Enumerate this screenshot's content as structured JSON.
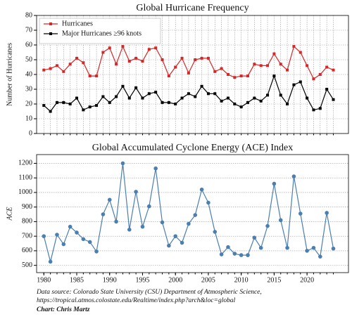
{
  "chart_data": [
    {
      "type": "line",
      "title": "Global Hurricane Frequency",
      "ylabel": "Number of Hurricanes",
      "x": [
        1980,
        1981,
        1982,
        1983,
        1984,
        1985,
        1986,
        1987,
        1988,
        1989,
        1990,
        1991,
        1992,
        1993,
        1994,
        1995,
        1996,
        1997,
        1998,
        1999,
        2000,
        2001,
        2002,
        2003,
        2004,
        2005,
        2006,
        2007,
        2008,
        2009,
        2010,
        2011,
        2012,
        2013,
        2014,
        2015,
        2016,
        2017,
        2018,
        2019,
        2020,
        2021,
        2022,
        2023,
        2024
      ],
      "series": [
        {
          "name": "Hurricanes",
          "color": "#d62728",
          "marker": "square",
          "values": [
            43,
            44,
            46,
            42,
            47,
            51,
            48,
            39,
            39,
            55,
            58,
            47,
            59,
            49,
            51,
            49,
            57,
            58,
            50,
            39,
            45,
            51,
            41,
            50,
            51,
            51,
            42,
            44,
            40,
            38,
            39,
            39,
            47,
            46,
            46,
            54,
            47,
            43,
            59,
            55,
            46,
            37,
            40,
            45,
            43
          ]
        },
        {
          "name": "Major Hurricanes ≥96 knots",
          "color": "#000000",
          "marker": "square",
          "values": [
            19,
            15,
            21,
            21,
            20,
            24,
            16,
            18,
            19,
            25,
            21,
            25,
            32,
            24,
            31,
            24,
            27,
            28,
            21,
            21,
            20,
            24,
            27,
            25,
            32,
            27,
            27,
            22,
            24,
            20,
            18,
            21,
            24,
            22,
            26,
            39,
            26,
            20,
            33,
            35,
            24,
            16,
            17,
            30,
            23
          ]
        }
      ],
      "xlim": [
        1978.9,
        2026.3
      ],
      "ylim": [
        0,
        80
      ],
      "yticks": [
        0,
        10,
        20,
        30,
        40,
        50,
        60,
        70,
        80
      ],
      "grid": true,
      "x_grid": true,
      "legend": "upper-left"
    },
    {
      "type": "line",
      "title": "Global Accumulated Cyclone Energy (ACE) Index",
      "ylabel": "ACE",
      "x": [
        1980,
        1981,
        1982,
        1983,
        1984,
        1985,
        1986,
        1987,
        1988,
        1989,
        1990,
        1991,
        1992,
        1993,
        1994,
        1995,
        1996,
        1997,
        1998,
        1999,
        2000,
        2001,
        2002,
        2003,
        2004,
        2005,
        2006,
        2007,
        2008,
        2009,
        2010,
        2011,
        2012,
        2013,
        2014,
        2015,
        2016,
        2017,
        2018,
        2019,
        2020,
        2021,
        2022,
        2023,
        2024
      ],
      "series": [
        {
          "color": "#4a7fb0",
          "marker": "circle",
          "values": [
            700,
            525,
            710,
            645,
            765,
            725,
            680,
            660,
            595,
            850,
            950,
            800,
            1200,
            745,
            1005,
            765,
            905,
            1165,
            795,
            635,
            700,
            655,
            785,
            845,
            1020,
            930,
            730,
            575,
            625,
            580,
            570,
            570,
            690,
            620,
            770,
            1060,
            810,
            620,
            1110,
            855,
            600,
            620,
            560,
            860,
            615
          ]
        }
      ],
      "xlim": [
        1978.9,
        2026.3
      ],
      "ylim": [
        450,
        1260
      ],
      "yticks": [
        500,
        600,
        700,
        800,
        900,
        1000,
        1100,
        1200
      ],
      "xticks": [
        1980,
        1985,
        1990,
        1995,
        2000,
        2005,
        2010,
        2015,
        2020
      ],
      "grid": true,
      "x_grid": false
    }
  ],
  "footer": {
    "source": "Data source: Colorado State University (CSU) Department of Atmospheric Science,",
    "url": "https://tropical.atmos.colostate.edu/Realtime/index.php?arch&loc=global",
    "credit": "Chart: Chris Martz"
  }
}
